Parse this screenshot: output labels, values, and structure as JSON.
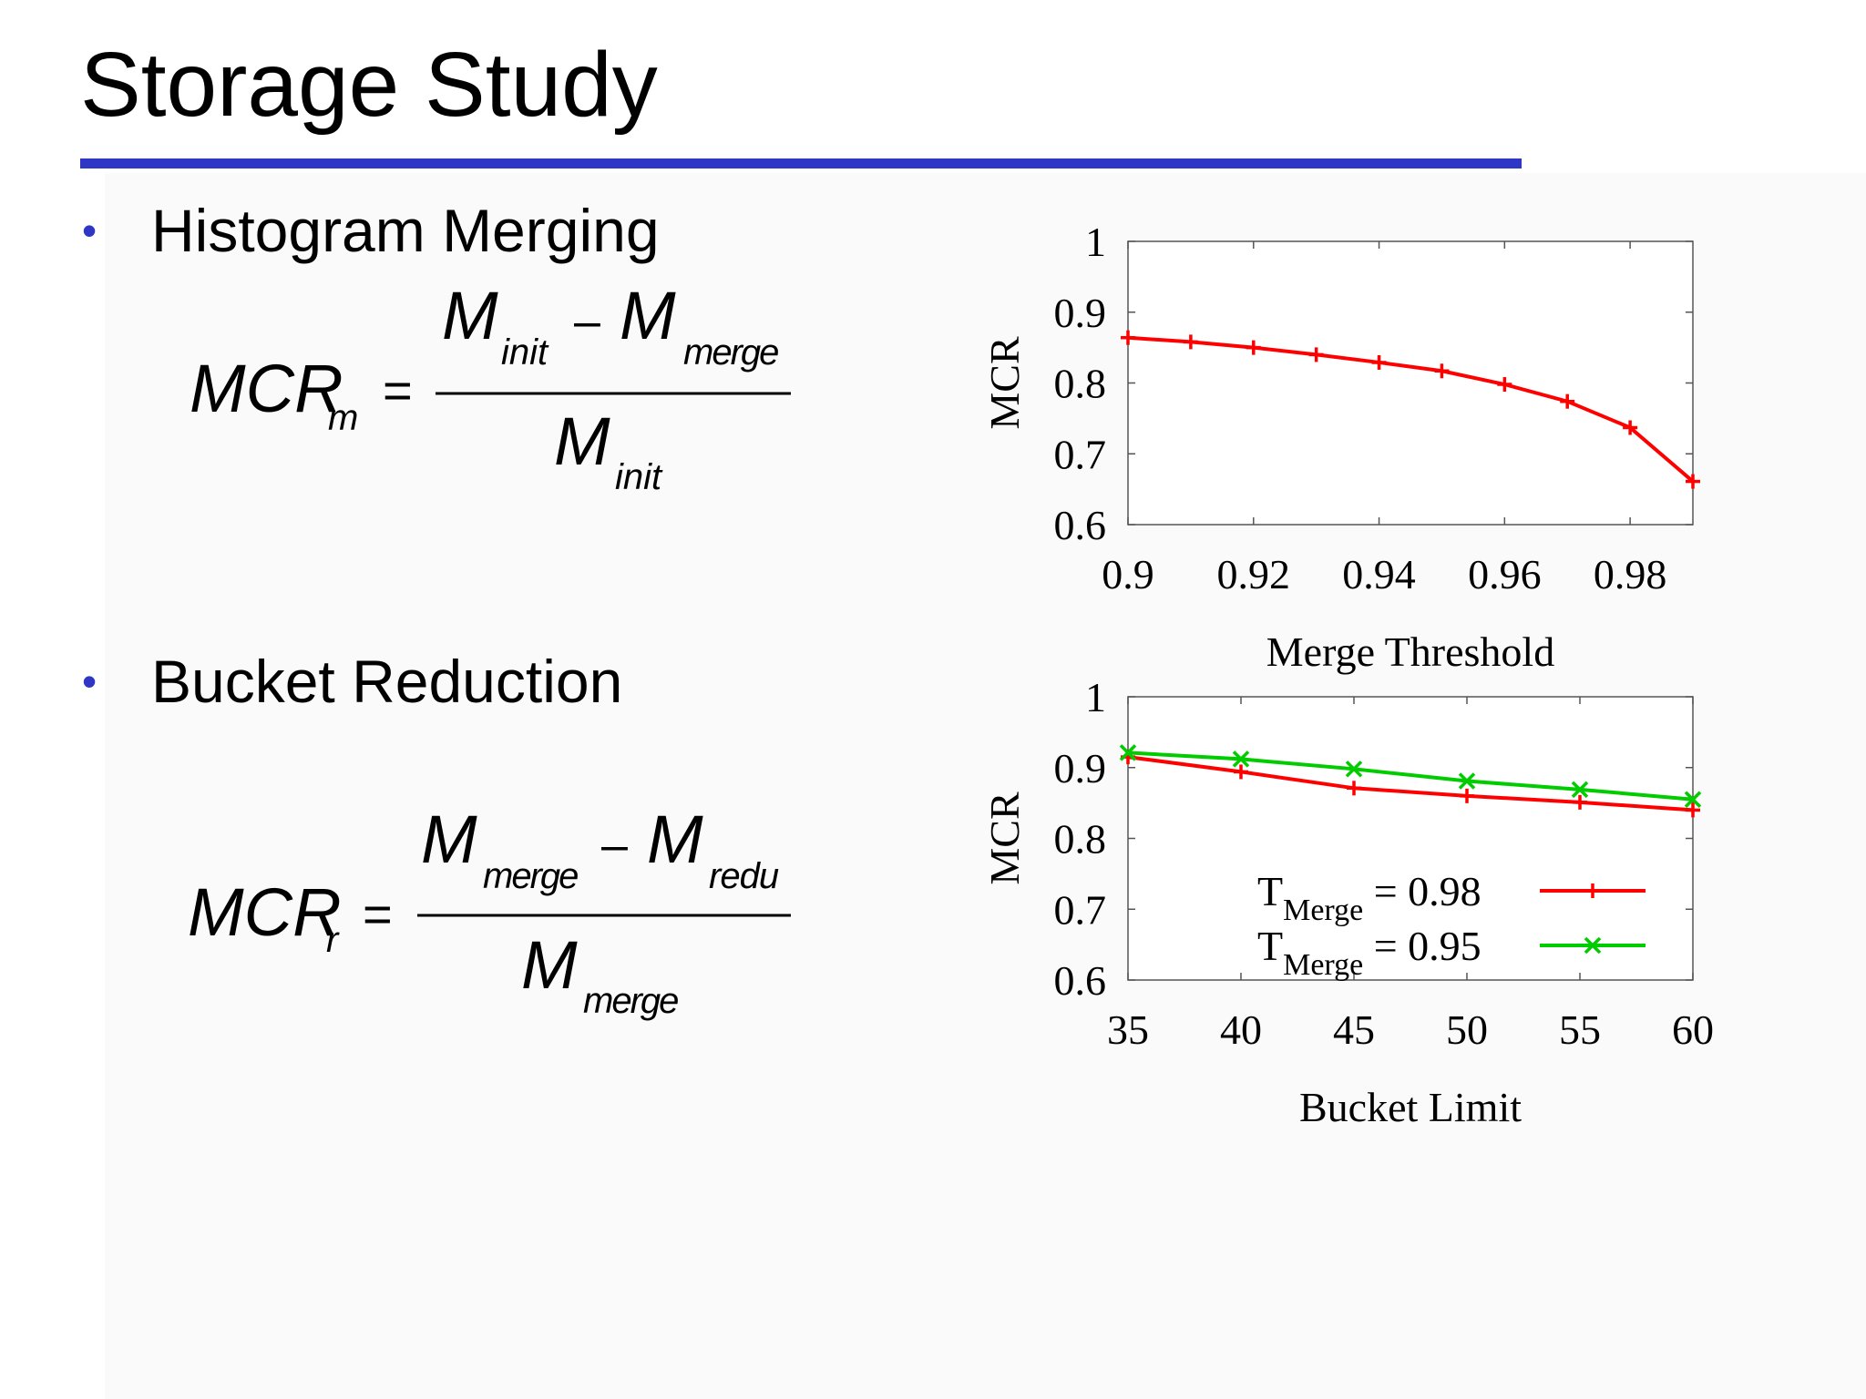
{
  "slide": {
    "title": "Storage Study",
    "bullets": [
      "Histogram Merging",
      "Bucket Reduction"
    ],
    "accent_color": "#2f36c6"
  },
  "formulas": {
    "merging": {
      "lhs_main": "MCR",
      "lhs_sub": "m",
      "equals": "=",
      "num_a_main": "M",
      "num_a_sub": "init",
      "minus": "–",
      "num_b_main": "M",
      "num_b_sub": "merge",
      "den_main": "M",
      "den_sub": "init"
    },
    "reduction": {
      "lhs_main": "MCR",
      "lhs_sub": "r",
      "equals": "=",
      "num_a_main": "M",
      "num_a_sub": "merge",
      "minus": "–",
      "num_b_main": "M",
      "num_b_sub": "redu",
      "den_main": "M",
      "den_sub": "merge"
    }
  },
  "chart_data": [
    {
      "type": "line",
      "xlabel": "Merge Threshold",
      "ylabel": "MCR",
      "xlim": [
        0.9,
        0.99
      ],
      "ylim": [
        0.6,
        1.0
      ],
      "x_ticks": [
        "0.9",
        "0.92",
        "0.94",
        "0.96",
        "0.98"
      ],
      "x_tick_values": [
        0.9,
        0.92,
        0.94,
        0.96,
        0.98
      ],
      "y_ticks": [
        "0.6",
        "0.7",
        "0.8",
        "0.9",
        "1"
      ],
      "y_tick_values": [
        0.6,
        0.7,
        0.8,
        0.9,
        1.0
      ],
      "grid": false,
      "series": [
        {
          "name": "",
          "color": "#ff0000",
          "marker": "plus",
          "x": [
            0.9,
            0.91,
            0.92,
            0.93,
            0.94,
            0.95,
            0.96,
            0.97,
            0.98,
            0.99
          ],
          "y": [
            0.864,
            0.858,
            0.85,
            0.84,
            0.829,
            0.817,
            0.798,
            0.774,
            0.737,
            0.661
          ]
        }
      ]
    },
    {
      "type": "line",
      "xlabel": "Bucket Limit",
      "ylabel": "MCR",
      "xlim": [
        35,
        60
      ],
      "ylim": [
        0.6,
        1.0
      ],
      "x_ticks": [
        "35",
        "40",
        "45",
        "50",
        "55",
        "60"
      ],
      "x_tick_values": [
        35,
        40,
        45,
        50,
        55,
        60
      ],
      "y_ticks": [
        "0.6",
        "0.7",
        "0.8",
        "0.9",
        "1"
      ],
      "y_tick_values": [
        0.6,
        0.7,
        0.8,
        0.9,
        1.0
      ],
      "grid": false,
      "legend_position": "bottom-right",
      "series": [
        {
          "name": "T",
          "name_sub": "Merge",
          "name_value": " = 0.98",
          "color": "#ff0000",
          "marker": "plus",
          "x": [
            35,
            40,
            45,
            50,
            55,
            60
          ],
          "y": [
            0.915,
            0.894,
            0.871,
            0.86,
            0.851,
            0.84
          ]
        },
        {
          "name": "T",
          "name_sub": "Merge",
          "name_value": " = 0.95",
          "color": "#00cc00",
          "marker": "x",
          "x": [
            35,
            40,
            45,
            50,
            55,
            60
          ],
          "y": [
            0.921,
            0.912,
            0.898,
            0.881,
            0.869,
            0.855
          ]
        }
      ]
    }
  ]
}
